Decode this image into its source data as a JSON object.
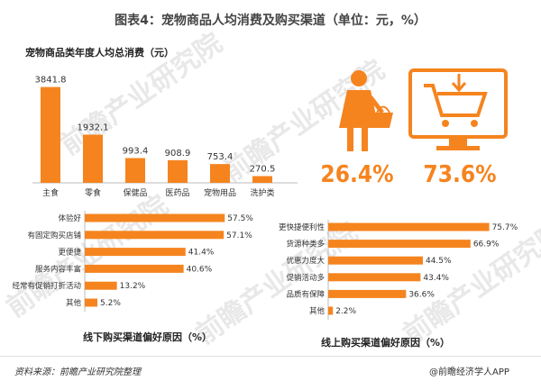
{
  "header": {
    "title": "图表4：宠物商品人均消费及购买渠道（单位：元，%）"
  },
  "chart_data": [
    {
      "type": "bar",
      "title": "宠物商品类年度人均总消费（元）",
      "categories": [
        "主食",
        "零食",
        "保健品",
        "医药品",
        "宠物用品",
        "洗护类"
      ],
      "values": [
        3841.8,
        1932.1,
        993.4,
        908.9,
        753.4,
        270.5
      ],
      "value_labels": [
        "3841.8",
        "1932.1",
        "993.4",
        "908.9",
        "753.4",
        "270.5"
      ],
      "ylim": [
        0,
        3900
      ],
      "color": "#f5841f"
    },
    {
      "type": "bar",
      "orientation": "horizontal",
      "title": "线下购买渠道偏好原因（%）",
      "categories": [
        "体验好",
        "有固定购买店铺",
        "更便捷",
        "服务内容丰富",
        "经常有促销打折活动",
        "其他"
      ],
      "values": [
        57.5,
        57.1,
        41.4,
        40.6,
        13.2,
        5.2
      ],
      "value_labels": [
        "57.5%",
        "57.1%",
        "41.4%",
        "40.6%",
        "13.2%",
        "5.2%"
      ],
      "xlim": [
        0,
        60
      ],
      "color": "#f5841f"
    },
    {
      "type": "bar",
      "orientation": "horizontal",
      "title": "线上购买渠道偏好原因（%）",
      "categories": [
        "更快捷便利性",
        "货源种类多",
        "优惠力度大",
        "促销活动多",
        "品质有保障",
        "其他"
      ],
      "values": [
        75.7,
        66.9,
        44.5,
        43.4,
        36.6,
        2.2
      ],
      "value_labels": [
        "75.7%",
        "66.9%",
        "44.5%",
        "43.4%",
        "36.6%",
        "2.2%"
      ],
      "xlim": [
        0,
        78
      ],
      "color": "#f5841f"
    }
  ],
  "shares": {
    "offline_pct": "26.4%",
    "online_pct": "73.6%",
    "color": "#f5841f",
    "offline_icon": "shopper-with-basket-icon",
    "online_icon": "computer-shopping-cart-icon"
  },
  "footer": {
    "source": "资料来源：前瞻产业研究院整理",
    "brand": "@前瞻经济学人APP"
  },
  "watermark": "前瞻产业研究院"
}
